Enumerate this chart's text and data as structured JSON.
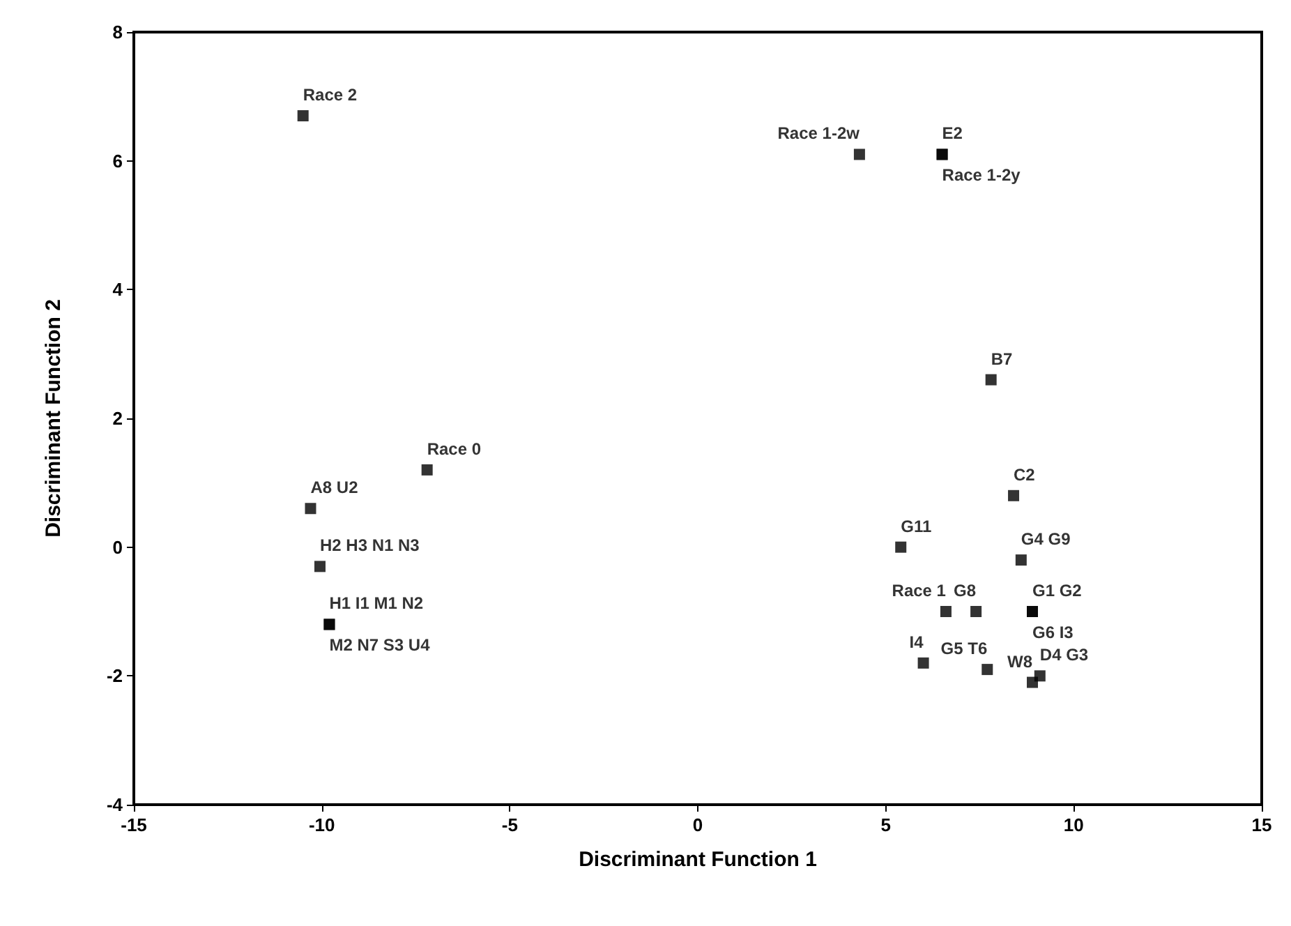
{
  "chart_data": {
    "type": "scatter",
    "xlabel": "Discriminant Function 1",
    "ylabel": "Discriminant Function 2",
    "x": [
      -10.5,
      4.3,
      6.5,
      6.5,
      7.8,
      -7.2,
      -10.3,
      -10.05,
      -9.8,
      -9.8,
      8.4,
      5.4,
      8.6,
      6.6,
      7.4,
      8.9,
      8.9,
      6.0,
      7.7,
      9.1,
      8.9
    ],
    "values": [
      6.7,
      6.1,
      6.1,
      6.1,
      2.6,
      1.2,
      0.6,
      -0.3,
      -1.2,
      -1.2,
      0.8,
      0.0,
      -0.2,
      -1.0,
      -1.0,
      -1.0,
      -1.0,
      -1.8,
      -1.9,
      -2.0,
      -2.1
    ],
    "value_labels": [
      "Race 2",
      "Race 1-2w",
      "E2",
      "Race 1-2y",
      "B7",
      "Race 0",
      "A8 U2",
      "H2 H3 N1 N3",
      "H1 I1 M1 N2",
      "M2 N7 S3 U4",
      "C2",
      "G11",
      "G4 G9",
      "Race 1",
      "G8",
      "G1 G2",
      "G6 I3",
      "I4",
      "G5 T6",
      "D4 G3",
      "W8"
    ],
    "color": "#000000",
    "marker": "square",
    "xlim": [
      -15,
      15
    ],
    "xticks": [
      -15,
      -10,
      -5,
      0,
      5,
      10,
      15
    ],
    "ylim": [
      -4,
      8
    ],
    "yticks": [
      -4,
      -2,
      0,
      2,
      4,
      6,
      8
    ]
  }
}
